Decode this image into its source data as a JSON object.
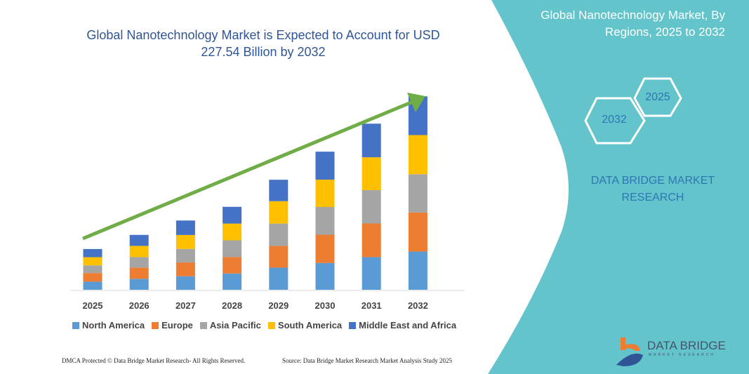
{
  "title": "Global Nanotechnology Market is Expected to Account for USD 227.54 Billion by 2032",
  "side_panel": {
    "title": "Global Nanotechnology Market, By Regions, 2025 to 2032",
    "hex_2025": "2025",
    "hex_2032": "2032",
    "brand": "DATA BRIDGE MARKET RESEARCH",
    "logo_text": "DATA BRIDGE",
    "logo_sub": "MARKET RESEARCH",
    "color": "#63c5cb"
  },
  "footer": {
    "left": "DMCA Protected © Data Bridge Market Research- All Rights Reserved.",
    "right": "Source: Data Bridge Market Research Market Analysis Study 2025"
  },
  "chart_data": {
    "type": "bar",
    "stacked": true,
    "title": "Global Nanotechnology Market is Expected to Account for USD 227.54 Billion by 2032",
    "categories": [
      "2025",
      "2026",
      "2027",
      "2028",
      "2029",
      "2030",
      "2031",
      "2032"
    ],
    "series": [
      {
        "name": "North America",
        "color": "#5b9bd5",
        "values": [
          9.6,
          12.9,
          15.9,
          19.2,
          26.0,
          31.5,
          38.4,
          44.9
        ]
      },
      {
        "name": "Europe",
        "color": "#ed7d31",
        "values": [
          10.1,
          13.2,
          16.2,
          19.2,
          25.5,
          33.2,
          39.5,
          46.0
        ]
      },
      {
        "name": "Asia Pacific",
        "color": "#a5a5a5",
        "values": [
          9.0,
          12.3,
          15.9,
          19.7,
          26.3,
          32.6,
          39.2,
          44.9
        ]
      },
      {
        "name": "South America",
        "color": "#ffc000",
        "values": [
          9.6,
          13.2,
          16.4,
          19.7,
          26.3,
          32.1,
          38.6,
          46.0
        ]
      },
      {
        "name": "Middle East and Africa",
        "color": "#4472c4",
        "values": [
          9.6,
          12.9,
          17.0,
          19.7,
          25.2,
          32.9,
          39.5,
          45.5
        ]
      }
    ],
    "ylim": [
      0,
      227.54
    ],
    "grid": false,
    "legend": "bottom",
    "trend_arrow_color": "#70ad47"
  }
}
